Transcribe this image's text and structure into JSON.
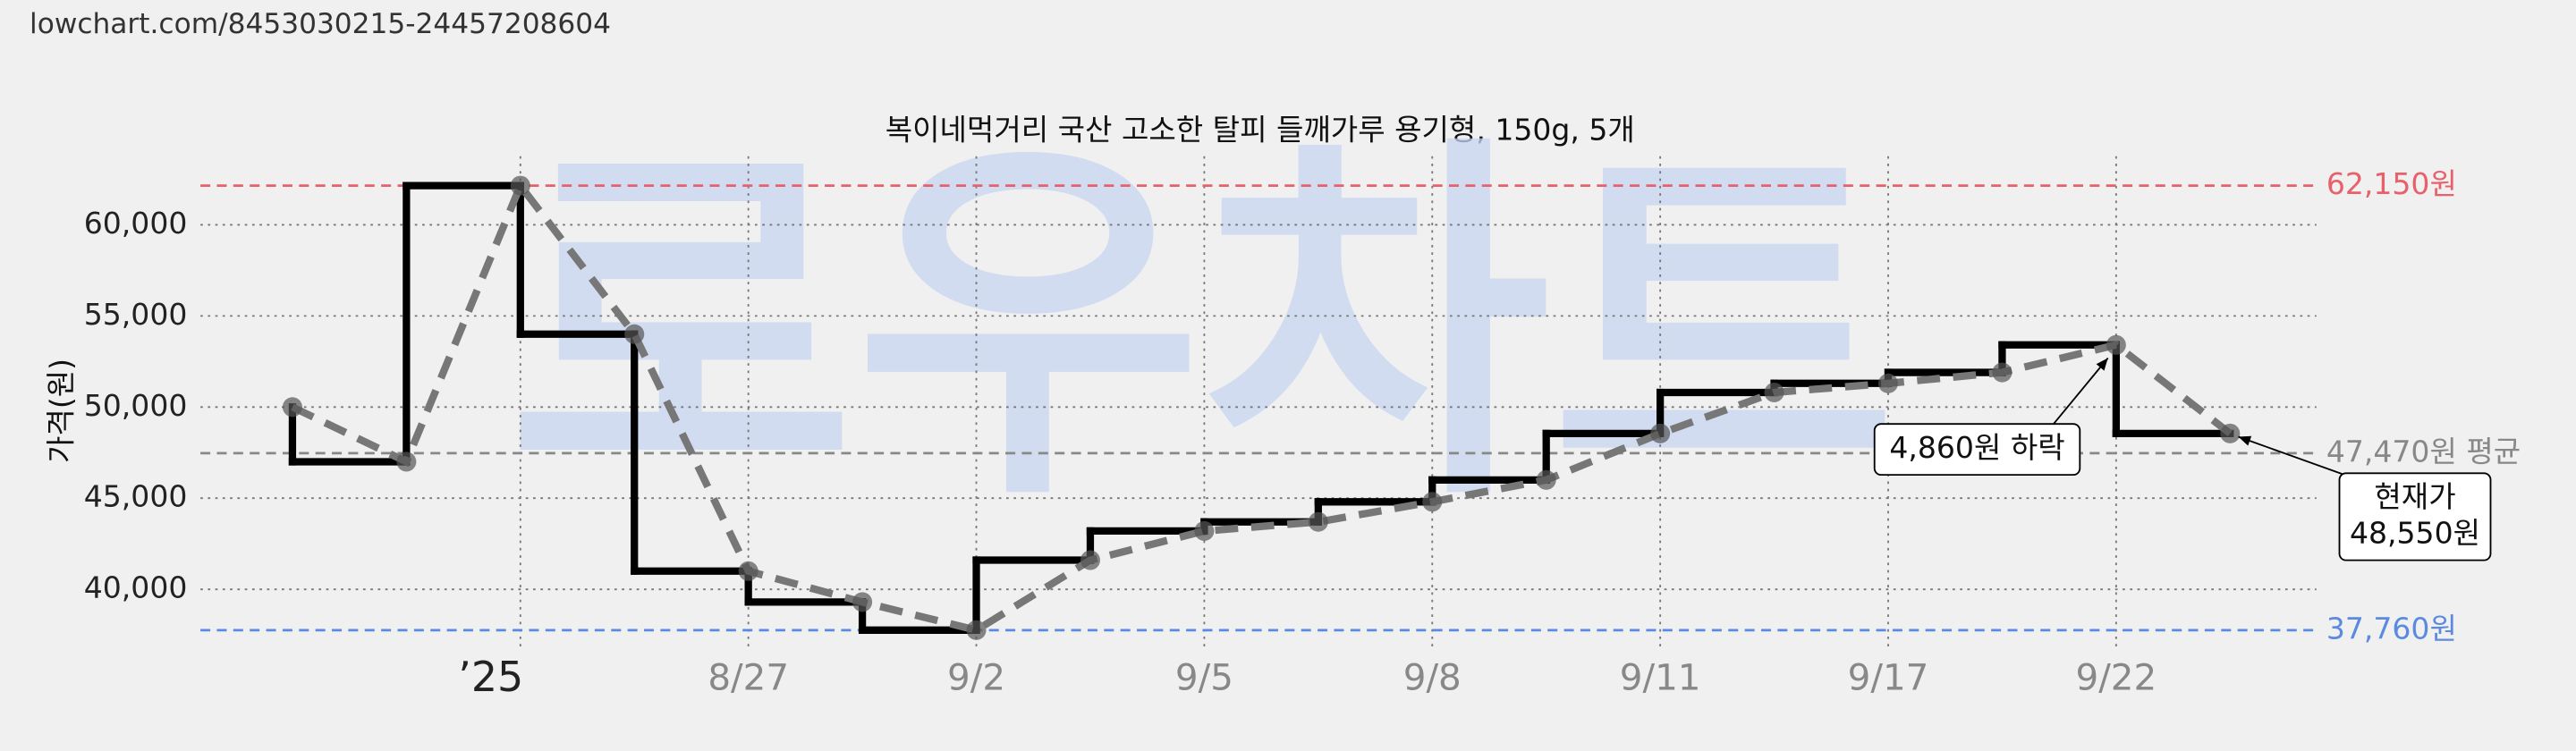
{
  "url": "lowchart.com/8453030215-24457208604",
  "chart_data": {
    "type": "line",
    "title": "복이네먹거리 국산 고소한 탈피 들깨가루 용기형, 150g, 5개",
    "y_label": "가격(원)",
    "watermark": "로우차트",
    "categories": [
      null,
      null,
      "’25",
      null,
      "8/27",
      null,
      "9/2",
      null,
      "9/5",
      null,
      "9/8",
      null,
      "9/11",
      null,
      "9/17",
      null,
      "9/22",
      null
    ],
    "values": [
      50000,
      47000,
      62150,
      54000,
      41000,
      39300,
      37760,
      41600,
      43200,
      43700,
      44800,
      46000,
      48550,
      50800,
      51300,
      51900,
      53410,
      48550
    ],
    "ylim": [
      36730,
      63760
    ],
    "yticks": [
      {
        "value": 40000,
        "label": "40,000"
      },
      {
        "value": 45000,
        "label": "45,000"
      },
      {
        "value": 50000,
        "label": "50,000"
      },
      {
        "value": 55000,
        "label": "55,000"
      },
      {
        "value": 60000,
        "label": "60,000"
      }
    ],
    "grid": true,
    "reference_lines": [
      {
        "value": 62150,
        "label": "62,150원",
        "color": "#e8606a"
      },
      {
        "value": 47470,
        "label": "47,470원 평균",
        "color": "#888888"
      },
      {
        "value": 37760,
        "label": "37,760원",
        "color": "#5b8ae0"
      }
    ],
    "annotations": [
      {
        "lines": [
          "4,860원 하락"
        ]
      },
      {
        "lines": [
          "현재가",
          "48,550원"
        ]
      }
    ]
  }
}
